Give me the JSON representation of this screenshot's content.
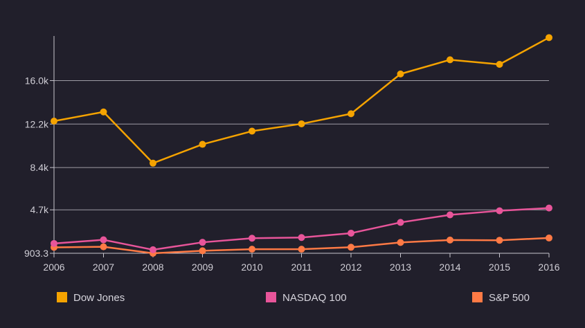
{
  "chart_data": {
    "type": "line",
    "title": "",
    "xlabel": "",
    "ylabel": "",
    "x": [
      "2006",
      "2007",
      "2008",
      "2009",
      "2010",
      "2011",
      "2012",
      "2013",
      "2014",
      "2015",
      "2016"
    ],
    "ylim": [
      903.3,
      19900
    ],
    "y_ticks": [
      903.3,
      4700,
      8400,
      12200,
      16000
    ],
    "y_tick_labels": [
      "903.3",
      "4.7k",
      "8.4k",
      "12.2k",
      "16.0k"
    ],
    "grid": true,
    "legend_position": "bottom",
    "series": [
      {
        "name": "Dow Jones",
        "color": "#f5a300",
        "values": [
          12460,
          13260,
          8780,
          10430,
          11580,
          12220,
          13100,
          16580,
          17820,
          17420,
          19760
        ]
      },
      {
        "name": "NASDAQ 100",
        "color": "#e8559a",
        "values": [
          1760,
          2080,
          1210,
          1860,
          2220,
          2280,
          2660,
          3600,
          4260,
          4620,
          4860
        ]
      },
      {
        "name": "S&P 500",
        "color": "#ff7a45",
        "values": [
          1420,
          1470,
          903,
          1120,
          1260,
          1260,
          1430,
          1850,
          2060,
          2040,
          2240
        ]
      }
    ]
  }
}
